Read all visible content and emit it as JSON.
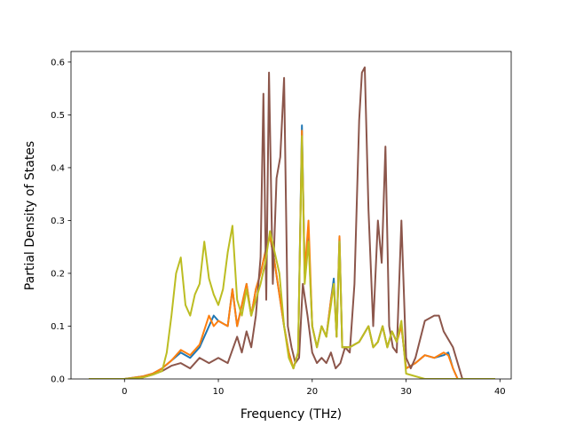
{
  "chart_data": {
    "type": "line",
    "title": "",
    "xlabel": "Frequency (THz)",
    "ylabel": "Partial Density of States",
    "xlim": [
      -5.7,
      41.2
    ],
    "ylim": [
      0,
      0.62
    ],
    "xticks": [
      0,
      10,
      20,
      30,
      40
    ],
    "xtick_labels": [
      "0",
      "10",
      "20",
      "30",
      "40"
    ],
    "yticks": [
      0,
      0.1,
      0.2,
      0.3,
      0.4,
      0.5,
      0.6
    ],
    "ytick_labels": [
      "0.0",
      "0.1",
      "0.2",
      "0.3",
      "0.4",
      "0.5",
      "0.6"
    ],
    "grid": false,
    "legend": "none",
    "colors": [
      "#1f77b4",
      "#ff7f0e",
      "#8c564b",
      "#bcbd22"
    ],
    "series": [
      {
        "color": "#1f77b4",
        "points": [
          [
            -3.8,
            0
          ],
          [
            0,
            0
          ],
          [
            2,
            0.005
          ],
          [
            3,
            0.01
          ],
          [
            4,
            0.02
          ],
          [
            5,
            0.035
          ],
          [
            6,
            0.05
          ],
          [
            7,
            0.04
          ],
          [
            8,
            0.06
          ],
          [
            9,
            0.1
          ],
          [
            9.5,
            0.12
          ],
          [
            10,
            0.11
          ],
          [
            11,
            0.1
          ],
          [
            11.5,
            0.17
          ],
          [
            12,
            0.1
          ],
          [
            12.5,
            0.14
          ],
          [
            13,
            0.18
          ],
          [
            13.5,
            0.12
          ],
          [
            14,
            0.17
          ],
          [
            14.5,
            0.2
          ],
          [
            15,
            0.24
          ],
          [
            15.5,
            0.27
          ],
          [
            16,
            0.22
          ],
          [
            16.5,
            0.16
          ],
          [
            17,
            0.1
          ],
          [
            17.5,
            0.05
          ],
          [
            18,
            0.02
          ],
          [
            18.5,
            0.05
          ],
          [
            18.9,
            0.48
          ],
          [
            19.2,
            0.2
          ],
          [
            19.6,
            0.27
          ],
          [
            20,
            0.1
          ],
          [
            20.5,
            0.06
          ],
          [
            21,
            0.1
          ],
          [
            21.5,
            0.08
          ],
          [
            22,
            0.15
          ],
          [
            22.3,
            0.19
          ],
          [
            22.6,
            0.08
          ],
          [
            22.9,
            0.27
          ],
          [
            23.2,
            0.06
          ],
          [
            24,
            0.06
          ],
          [
            25,
            0.07
          ],
          [
            26,
            0.1
          ],
          [
            26.5,
            0.06
          ],
          [
            27,
            0.07
          ],
          [
            27.5,
            0.1
          ],
          [
            28,
            0.06
          ],
          [
            28.5,
            0.09
          ],
          [
            29,
            0.07
          ],
          [
            29.5,
            0.1
          ],
          [
            30,
            0.02
          ],
          [
            31,
            0.03
          ],
          [
            32,
            0.045
          ],
          [
            33,
            0.04
          ],
          [
            34,
            0.045
          ],
          [
            34.5,
            0.05
          ],
          [
            35,
            0.02
          ],
          [
            35.5,
            0
          ],
          [
            39.5,
            0
          ]
        ]
      },
      {
        "color": "#ff7f0e",
        "points": [
          [
            -3.8,
            0
          ],
          [
            0,
            0
          ],
          [
            2,
            0.005
          ],
          [
            3,
            0.01
          ],
          [
            4,
            0.02
          ],
          [
            5,
            0.035
          ],
          [
            6,
            0.055
          ],
          [
            7,
            0.045
          ],
          [
            8,
            0.065
          ],
          [
            9,
            0.12
          ],
          [
            9.5,
            0.1
          ],
          [
            10,
            0.11
          ],
          [
            11,
            0.1
          ],
          [
            11.5,
            0.17
          ],
          [
            12,
            0.1
          ],
          [
            12.5,
            0.14
          ],
          [
            13,
            0.18
          ],
          [
            13.5,
            0.12
          ],
          [
            14,
            0.17
          ],
          [
            14.5,
            0.2
          ],
          [
            15,
            0.24
          ],
          [
            15.5,
            0.27
          ],
          [
            16,
            0.22
          ],
          [
            16.5,
            0.16
          ],
          [
            17,
            0.1
          ],
          [
            17.5,
            0.05
          ],
          [
            18,
            0.02
          ],
          [
            18.5,
            0.05
          ],
          [
            18.9,
            0.47
          ],
          [
            19.2,
            0.2
          ],
          [
            19.6,
            0.3
          ],
          [
            20,
            0.1
          ],
          [
            20.5,
            0.06
          ],
          [
            21,
            0.1
          ],
          [
            21.5,
            0.08
          ],
          [
            22,
            0.15
          ],
          [
            22.3,
            0.18
          ],
          [
            22.6,
            0.08
          ],
          [
            22.9,
            0.27
          ],
          [
            23.2,
            0.06
          ],
          [
            24,
            0.06
          ],
          [
            25,
            0.07
          ],
          [
            26,
            0.1
          ],
          [
            26.5,
            0.06
          ],
          [
            27,
            0.07
          ],
          [
            27.5,
            0.1
          ],
          [
            28,
            0.06
          ],
          [
            28.5,
            0.09
          ],
          [
            29,
            0.07
          ],
          [
            29.5,
            0.1
          ],
          [
            30,
            0.02
          ],
          [
            31,
            0.03
          ],
          [
            32,
            0.045
          ],
          [
            33,
            0.04
          ],
          [
            34,
            0.05
          ],
          [
            34.5,
            0.045
          ],
          [
            35,
            0.02
          ],
          [
            35.5,
            0
          ],
          [
            39.5,
            0
          ]
        ]
      },
      {
        "color": "#8c564b",
        "points": [
          [
            -3.8,
            0
          ],
          [
            0,
            0
          ],
          [
            2,
            0.003
          ],
          [
            3,
            0.008
          ],
          [
            4,
            0.015
          ],
          [
            5,
            0.025
          ],
          [
            6,
            0.03
          ],
          [
            7,
            0.02
          ],
          [
            8,
            0.04
          ],
          [
            9,
            0.03
          ],
          [
            10,
            0.04
          ],
          [
            11,
            0.03
          ],
          [
            12,
            0.08
          ],
          [
            12.5,
            0.05
          ],
          [
            13,
            0.09
          ],
          [
            13.5,
            0.06
          ],
          [
            14,
            0.12
          ],
          [
            14.5,
            0.23
          ],
          [
            14.8,
            0.54
          ],
          [
            15.1,
            0.15
          ],
          [
            15.4,
            0.58
          ],
          [
            15.8,
            0.18
          ],
          [
            16.2,
            0.38
          ],
          [
            16.6,
            0.42
          ],
          [
            17,
            0.57
          ],
          [
            17.4,
            0.1
          ],
          [
            17.8,
            0.06
          ],
          [
            18.2,
            0.03
          ],
          [
            18.6,
            0.04
          ],
          [
            19,
            0.18
          ],
          [
            19.5,
            0.12
          ],
          [
            20,
            0.05
          ],
          [
            20.5,
            0.03
          ],
          [
            21,
            0.04
          ],
          [
            21.5,
            0.03
          ],
          [
            22,
            0.05
          ],
          [
            22.5,
            0.02
          ],
          [
            23,
            0.03
          ],
          [
            23.5,
            0.06
          ],
          [
            24,
            0.05
          ],
          [
            24.5,
            0.18
          ],
          [
            25,
            0.49
          ],
          [
            25.3,
            0.58
          ],
          [
            25.6,
            0.59
          ],
          [
            26,
            0.32
          ],
          [
            26.5,
            0.1
          ],
          [
            27,
            0.3
          ],
          [
            27.4,
            0.22
          ],
          [
            27.8,
            0.44
          ],
          [
            28.2,
            0.1
          ],
          [
            28.6,
            0.06
          ],
          [
            29,
            0.05
          ],
          [
            29.5,
            0.3
          ],
          [
            30,
            0.04
          ],
          [
            30.5,
            0.02
          ],
          [
            31,
            0.04
          ],
          [
            32,
            0.11
          ],
          [
            33,
            0.12
          ],
          [
            33.5,
            0.12
          ],
          [
            34,
            0.09
          ],
          [
            35,
            0.06
          ],
          [
            35.5,
            0.03
          ],
          [
            36,
            0
          ],
          [
            39.5,
            0
          ]
        ]
      },
      {
        "color": "#bcbd22",
        "points": [
          [
            -3.8,
            0
          ],
          [
            0,
            0
          ],
          [
            2,
            0.003
          ],
          [
            3,
            0.008
          ],
          [
            4,
            0.015
          ],
          [
            4.5,
            0.05
          ],
          [
            5,
            0.12
          ],
          [
            5.5,
            0.2
          ],
          [
            6,
            0.23
          ],
          [
            6.5,
            0.14
          ],
          [
            7,
            0.12
          ],
          [
            7.5,
            0.16
          ],
          [
            8,
            0.18
          ],
          [
            8.5,
            0.26
          ],
          [
            9,
            0.19
          ],
          [
            9.5,
            0.16
          ],
          [
            10,
            0.14
          ],
          [
            10.5,
            0.17
          ],
          [
            11,
            0.24
          ],
          [
            11.5,
            0.29
          ],
          [
            12,
            0.15
          ],
          [
            12.5,
            0.12
          ],
          [
            13,
            0.17
          ],
          [
            13.5,
            0.12
          ],
          [
            14,
            0.15
          ],
          [
            14.5,
            0.18
          ],
          [
            15,
            0.22
          ],
          [
            15.5,
            0.28
          ],
          [
            16,
            0.24
          ],
          [
            16.5,
            0.2
          ],
          [
            17,
            0.1
          ],
          [
            17.5,
            0.04
          ],
          [
            18,
            0.02
          ],
          [
            18.5,
            0.05
          ],
          [
            18.9,
            0.46
          ],
          [
            19.2,
            0.18
          ],
          [
            19.6,
            0.26
          ],
          [
            20,
            0.1
          ],
          [
            20.5,
            0.06
          ],
          [
            21,
            0.1
          ],
          [
            21.5,
            0.08
          ],
          [
            22,
            0.14
          ],
          [
            22.3,
            0.18
          ],
          [
            22.6,
            0.08
          ],
          [
            22.9,
            0.26
          ],
          [
            23.2,
            0.06
          ],
          [
            24,
            0.06
          ],
          [
            25,
            0.07
          ],
          [
            26,
            0.1
          ],
          [
            26.5,
            0.06
          ],
          [
            27,
            0.07
          ],
          [
            27.5,
            0.1
          ],
          [
            28,
            0.06
          ],
          [
            28.5,
            0.09
          ],
          [
            29,
            0.07
          ],
          [
            29.5,
            0.11
          ],
          [
            30,
            0.01
          ],
          [
            31,
            0.005
          ],
          [
            32,
            0
          ],
          [
            39.5,
            0
          ]
        ]
      }
    ]
  }
}
